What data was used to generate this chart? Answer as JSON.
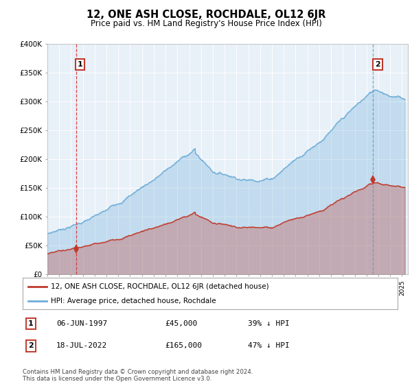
{
  "title": "12, ONE ASH CLOSE, ROCHDALE, OL12 6JR",
  "subtitle": "Price paid vs. HM Land Registry's House Price Index (HPI)",
  "ylim": [
    0,
    400000
  ],
  "xlim_start": 1995.0,
  "xlim_end": 2025.5,
  "hpi_color": "#6dadd8",
  "hpi_fill": "#daeaf7",
  "price_color": "#c0392b",
  "price_fill": "#f5c6c6",
  "dashed1_color": "#d62728",
  "dashed2_color": "#6699bb",
  "background_color": "#ffffff",
  "plot_bg": "#e8f0f8",
  "grid_color": "#ffffff",
  "transaction1_x": 1997.44,
  "transaction1_y": 45000,
  "transaction2_x": 2022.54,
  "transaction2_y": 165000,
  "legend_label1": "12, ONE ASH CLOSE, ROCHDALE, OL12 6JR (detached house)",
  "legend_label2": "HPI: Average price, detached house, Rochdale",
  "footnote": "Contains HM Land Registry data © Crown copyright and database right 2024.\nThis data is licensed under the Open Government Licence v3.0.",
  "table_row1": [
    "1",
    "06-JUN-1997",
    "£45,000",
    "39% ↓ HPI"
  ],
  "table_row2": [
    "2",
    "18-JUL-2022",
    "£165,000",
    "47% ↓ HPI"
  ]
}
